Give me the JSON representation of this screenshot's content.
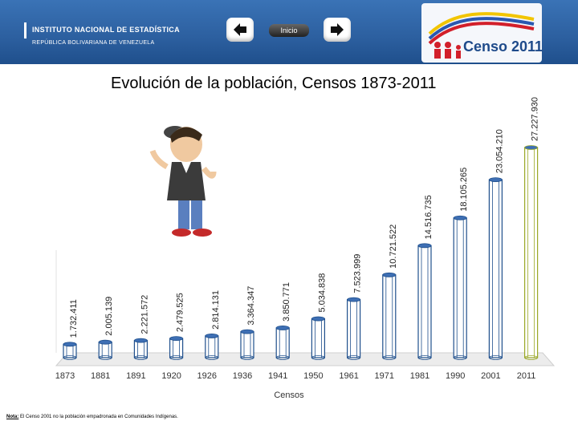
{
  "header": {
    "ine_name": "INSTITUTO NACIONAL DE ESTADÍSTICA",
    "ine_country": "REPÚBLICA BOLIVARIANA DE VENEZUELA",
    "inicio_label": "Inicio",
    "censo_logo_text": "Censo 2011",
    "colors": {
      "header_bg": "#2c5f9f",
      "bar_stroke": "#1f4f8c",
      "highlight": "#9aa827"
    }
  },
  "note": {
    "label": "Nota:",
    "text": "El Censo 2001 no la población empadronada en Comunidades Indígenas."
  },
  "chart_data": {
    "type": "bar",
    "title": "Evolución de la población, Censos 1873-2011",
    "xlabel": "Censos",
    "ylabel": "",
    "categories": [
      "1873",
      "1881",
      "1891",
      "1920",
      "1926",
      "1936",
      "1941",
      "1950",
      "1961",
      "1971",
      "1981",
      "1990",
      "2001",
      "2011"
    ],
    "values": [
      1732411,
      2005139,
      2221572,
      2479525,
      2814131,
      3364347,
      3850771,
      5034838,
      7523999,
      10721522,
      14516735,
      18105265,
      23054210,
      27227930
    ],
    "data_labels": [
      "1.732.411",
      "2.005.139",
      "2.221.572",
      "2.479.525",
      "2.814.131",
      "3.364.347",
      "3.850.771",
      "5.034.838",
      "7.523.999",
      "10.721.522",
      "14.516.735",
      "18.105.265",
      "23.054.210",
      "27.227.930"
    ],
    "ylim": [
      0,
      27227930
    ],
    "grid": false,
    "legend": "none",
    "highlight_category": "2011"
  }
}
